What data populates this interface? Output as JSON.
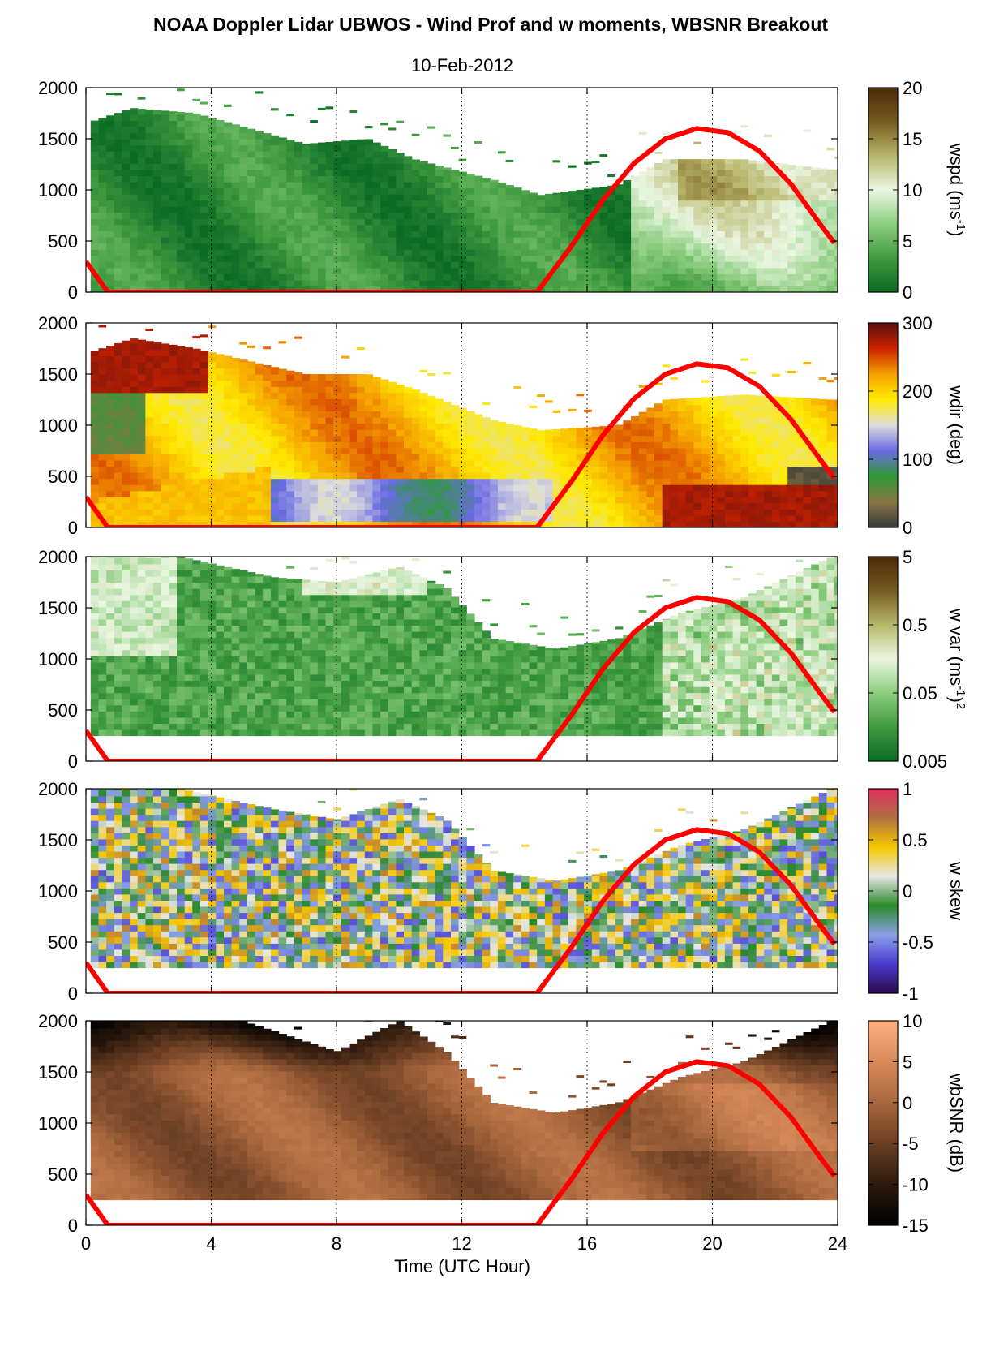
{
  "figure": {
    "title": "NOAA Doppler Lidar UBWOS - Wind Prof and w moments, WBSNR Breakout",
    "subtitle": "10-Feb-2012",
    "xlabel": "Time (UTC Hour)"
  },
  "chart_data": [
    {
      "type": "heatmap",
      "name": "wspd",
      "xlim": [
        0,
        24
      ],
      "ylim": [
        0,
        2000
      ],
      "x_ticks": [
        "0",
        "4",
        "8",
        "12",
        "16",
        "20",
        "24"
      ],
      "y_ticks": [
        "0",
        "500",
        "1000",
        "1500",
        "2000"
      ],
      "colorbar": {
        "label": "wspd (ms",
        "label_sup": "-1",
        "label_end": ")",
        "ticks": [
          "0",
          "5",
          "10",
          "15",
          "20"
        ],
        "colors": [
          "#0a6b25",
          "#3f9a3f",
          "#8ccd7f",
          "#eaf6e1",
          "#b7b66a",
          "#765a20",
          "#4a2a08"
        ]
      },
      "top_profile": [
        [
          0,
          1650
        ],
        [
          1.5,
          1800
        ],
        [
          3.5,
          1750
        ],
        [
          7,
          1450
        ],
        [
          9,
          1500
        ],
        [
          10.5,
          1300
        ],
        [
          13,
          1100
        ],
        [
          14.5,
          950
        ],
        [
          17,
          1050
        ],
        [
          18.5,
          1300
        ],
        [
          21,
          1300
        ],
        [
          23.8,
          1200
        ]
      ],
      "bottom_height": 0,
      "gridlines": true
    },
    {
      "type": "heatmap",
      "name": "wdir",
      "xlim": [
        0,
        24
      ],
      "ylim": [
        0,
        2000
      ],
      "x_ticks": [
        "0",
        "4",
        "8",
        "12",
        "16",
        "20",
        "24"
      ],
      "y_ticks": [
        "0",
        "500",
        "1000",
        "1500",
        "2000"
      ],
      "colorbar": {
        "label": "wdir (deg)",
        "ticks": [
          "0",
          "100",
          "200",
          "300"
        ],
        "colors": [
          "#3a3a3a",
          "#8a7545",
          "#2f9a38",
          "#6a6ae6",
          "#dcdcdc",
          "#ffea00",
          "#f5a000",
          "#cc2200",
          "#5a1010"
        ]
      },
      "top_profile": [
        [
          0,
          1700
        ],
        [
          1.5,
          1850
        ],
        [
          3.5,
          1750
        ],
        [
          7,
          1500
        ],
        [
          9,
          1500
        ],
        [
          10.5,
          1350
        ],
        [
          13,
          1050
        ],
        [
          14.5,
          950
        ],
        [
          17,
          1000
        ],
        [
          18.5,
          1250
        ],
        [
          21,
          1300
        ],
        [
          23.8,
          1250
        ]
      ],
      "bottom_height": 0,
      "gridlines": true
    },
    {
      "type": "heatmap",
      "name": "w var",
      "xlim": [
        0,
        24
      ],
      "ylim": [
        0,
        2000
      ],
      "x_ticks": [
        "0",
        "4",
        "8",
        "12",
        "16",
        "20",
        "24"
      ],
      "y_ticks": [
        "0",
        "500",
        "1000",
        "1500",
        "2000"
      ],
      "colorbar": {
        "label": "w var (ms",
        "label_sup": "-1",
        "label_end": ")",
        "label_sup2": "2",
        "ticks": [
          "0.005",
          "0.05",
          "0.5",
          "5"
        ],
        "scale": "log",
        "colors": [
          "#0a6b25",
          "#3f9a3f",
          "#8ccd7f",
          "#eaf6e1",
          "#b7b66a",
          "#765a20",
          "#4a2a08"
        ]
      },
      "top_profile": [
        [
          0,
          2000
        ],
        [
          3,
          2000
        ],
        [
          6,
          1800
        ],
        [
          8,
          1750
        ],
        [
          10,
          1900
        ],
        [
          11.5,
          1700
        ],
        [
          13,
          1200
        ],
        [
          15,
          1100
        ],
        [
          17,
          1200
        ],
        [
          19,
          1450
        ],
        [
          21,
          1600
        ],
        [
          23.8,
          2000
        ]
      ],
      "bottom_height": 250,
      "gridlines": true
    },
    {
      "type": "heatmap",
      "name": "w skew",
      "xlim": [
        0,
        24
      ],
      "ylim": [
        0,
        2000
      ],
      "x_ticks": [
        "0",
        "4",
        "8",
        "12",
        "16",
        "20",
        "24"
      ],
      "y_ticks": [
        "0",
        "500",
        "1000",
        "1500",
        "2000"
      ],
      "colorbar": {
        "label": "w skew",
        "ticks": [
          "-1",
          "-0.5",
          "0",
          "0.5",
          "1"
        ],
        "colors": [
          "#2a0a4a",
          "#4a3ad0",
          "#8aa0e6",
          "#2a8a2a",
          "#e6e6e6",
          "#f5c800",
          "#b07040",
          "#e03060"
        ]
      },
      "top_profile": [
        [
          0,
          2000
        ],
        [
          3,
          2000
        ],
        [
          6,
          1800
        ],
        [
          8,
          1700
        ],
        [
          10,
          1900
        ],
        [
          11.5,
          1700
        ],
        [
          13,
          1200
        ],
        [
          15,
          1100
        ],
        [
          17,
          1200
        ],
        [
          19,
          1450
        ],
        [
          21,
          1600
        ],
        [
          23.8,
          2000
        ]
      ],
      "bottom_height": 250,
      "gridlines": true
    },
    {
      "type": "heatmap",
      "name": "wbSNR",
      "xlim": [
        0,
        24
      ],
      "ylim": [
        0,
        2000
      ],
      "x_ticks": [
        "0",
        "4",
        "8",
        "12",
        "16",
        "20",
        "24"
      ],
      "y_ticks": [
        "0",
        "500",
        "1000",
        "1500",
        "2000"
      ],
      "colorbar": {
        "label": "wbSNR (dB)",
        "ticks": [
          "-15",
          "-10",
          "-5",
          "0",
          "5",
          "10"
        ],
        "colors": [
          "#000000",
          "#2e1a0e",
          "#6a3e22",
          "#a8673e",
          "#d8895a",
          "#ffb07e"
        ]
      },
      "top_profile": [
        [
          0,
          2000
        ],
        [
          5,
          2000
        ],
        [
          8,
          1700
        ],
        [
          10,
          2000
        ],
        [
          11.5,
          1700
        ],
        [
          13,
          1200
        ],
        [
          15,
          1100
        ],
        [
          17,
          1200
        ],
        [
          19,
          1450
        ],
        [
          21,
          1600
        ],
        [
          23.8,
          2000
        ]
      ],
      "bottom_height": 250,
      "gridlines": true
    }
  ],
  "overlay_line": {
    "color": "#ff0000",
    "x": [
      0,
      0.7,
      14.4,
      15.5,
      16.5,
      17.5,
      18.5,
      19.5,
      20.5,
      21.5,
      22.5,
      23.5,
      23.9
    ],
    "y": [
      300,
      0,
      0,
      450,
      900,
      1260,
      1500,
      1600,
      1560,
      1380,
      1060,
      640,
      480
    ]
  }
}
